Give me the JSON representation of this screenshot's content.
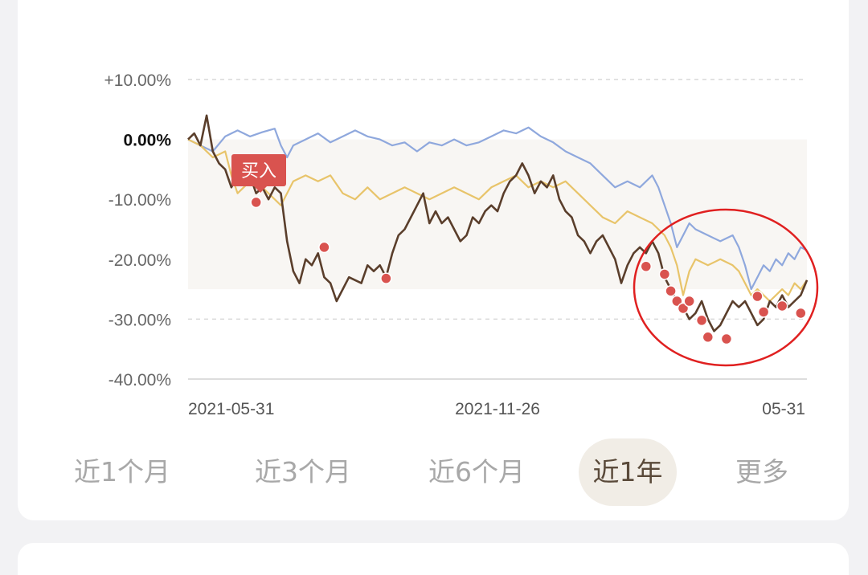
{
  "chart_data": {
    "type": "line",
    "y_ticks": [
      "+10.00%",
      "0.00%",
      "-10.00%",
      "-20.00%",
      "-30.00%",
      "-40.00%"
    ],
    "x_ticks": [
      "2021-05-31",
      "2021-11-26",
      "05-31"
    ],
    "ylim": [
      -40,
      10
    ],
    "grid": true,
    "x_domain": [
      0,
      1
    ],
    "series": [
      {
        "color": "#8fa8dd",
        "points": [
          [
            0,
            0
          ],
          [
            0.02,
            -1
          ],
          [
            0.04,
            -2
          ],
          [
            0.06,
            0.5
          ],
          [
            0.08,
            1.5
          ],
          [
            0.1,
            0.5
          ],
          [
            0.12,
            1.2
          ],
          [
            0.14,
            1.8
          ],
          [
            0.15,
            -1
          ],
          [
            0.16,
            -3
          ],
          [
            0.17,
            -1
          ],
          [
            0.19,
            0
          ],
          [
            0.21,
            1
          ],
          [
            0.23,
            -0.5
          ],
          [
            0.25,
            0.5
          ],
          [
            0.27,
            1.5
          ],
          [
            0.29,
            0.5
          ],
          [
            0.31,
            0
          ],
          [
            0.33,
            -1
          ],
          [
            0.35,
            -0.5
          ],
          [
            0.37,
            -2
          ],
          [
            0.39,
            -0.5
          ],
          [
            0.41,
            -1
          ],
          [
            0.43,
            0
          ],
          [
            0.45,
            -1
          ],
          [
            0.47,
            -0.5
          ],
          [
            0.49,
            0.5
          ],
          [
            0.51,
            1.5
          ],
          [
            0.53,
            1
          ],
          [
            0.55,
            2
          ],
          [
            0.57,
            0.5
          ],
          [
            0.59,
            -0.5
          ],
          [
            0.61,
            -2
          ],
          [
            0.63,
            -3
          ],
          [
            0.65,
            -4
          ],
          [
            0.67,
            -6
          ],
          [
            0.69,
            -8
          ],
          [
            0.71,
            -7
          ],
          [
            0.73,
            -8
          ],
          [
            0.75,
            -6
          ],
          [
            0.76,
            -8
          ],
          [
            0.77,
            -11
          ],
          [
            0.78,
            -14
          ],
          [
            0.79,
            -18
          ],
          [
            0.8,
            -16
          ],
          [
            0.81,
            -14
          ],
          [
            0.82,
            -15
          ],
          [
            0.84,
            -16
          ],
          [
            0.86,
            -17
          ],
          [
            0.88,
            -16
          ],
          [
            0.89,
            -18
          ],
          [
            0.9,
            -21
          ],
          [
            0.91,
            -25
          ],
          [
            0.92,
            -23
          ],
          [
            0.93,
            -21
          ],
          [
            0.94,
            -22
          ],
          [
            0.95,
            -20
          ],
          [
            0.96,
            -21
          ],
          [
            0.97,
            -19
          ],
          [
            0.98,
            -20
          ],
          [
            0.99,
            -18
          ],
          [
            1.0,
            -18.5
          ]
        ]
      },
      {
        "color": "#e8c46a",
        "points": [
          [
            0,
            0
          ],
          [
            0.02,
            -1
          ],
          [
            0.04,
            -3
          ],
          [
            0.06,
            -2
          ],
          [
            0.07,
            -6
          ],
          [
            0.08,
            -9
          ],
          [
            0.1,
            -7
          ],
          [
            0.12,
            -8
          ],
          [
            0.14,
            -10
          ],
          [
            0.15,
            -11
          ],
          [
            0.16,
            -9
          ],
          [
            0.17,
            -7
          ],
          [
            0.19,
            -6
          ],
          [
            0.21,
            -7
          ],
          [
            0.23,
            -6
          ],
          [
            0.25,
            -9
          ],
          [
            0.27,
            -10
          ],
          [
            0.29,
            -8
          ],
          [
            0.31,
            -10
          ],
          [
            0.33,
            -9
          ],
          [
            0.35,
            -8
          ],
          [
            0.37,
            -9
          ],
          [
            0.39,
            -10
          ],
          [
            0.41,
            -9
          ],
          [
            0.43,
            -8
          ],
          [
            0.45,
            -9
          ],
          [
            0.47,
            -10
          ],
          [
            0.49,
            -8
          ],
          [
            0.51,
            -7
          ],
          [
            0.53,
            -6
          ],
          [
            0.55,
            -8
          ],
          [
            0.57,
            -7
          ],
          [
            0.59,
            -8
          ],
          [
            0.61,
            -7
          ],
          [
            0.63,
            -9
          ],
          [
            0.65,
            -11
          ],
          [
            0.67,
            -13
          ],
          [
            0.69,
            -14
          ],
          [
            0.71,
            -12
          ],
          [
            0.73,
            -13
          ],
          [
            0.75,
            -14
          ],
          [
            0.77,
            -16
          ],
          [
            0.78,
            -18
          ],
          [
            0.79,
            -21
          ],
          [
            0.8,
            -26
          ],
          [
            0.81,
            -22
          ],
          [
            0.82,
            -20
          ],
          [
            0.84,
            -21
          ],
          [
            0.86,
            -20
          ],
          [
            0.88,
            -21
          ],
          [
            0.89,
            -22
          ],
          [
            0.9,
            -24
          ],
          [
            0.91,
            -26
          ],
          [
            0.92,
            -25
          ],
          [
            0.94,
            -27
          ],
          [
            0.95,
            -26
          ],
          [
            0.96,
            -25
          ],
          [
            0.97,
            -26
          ],
          [
            0.98,
            -24
          ],
          [
            0.99,
            -25
          ],
          [
            1.0,
            -23.5
          ]
        ]
      },
      {
        "color": "#5a3e2b",
        "points": [
          [
            0,
            0
          ],
          [
            0.01,
            1
          ],
          [
            0.02,
            -1
          ],
          [
            0.03,
            4
          ],
          [
            0.04,
            -2
          ],
          [
            0.05,
            -4
          ],
          [
            0.06,
            -5
          ],
          [
            0.07,
            -8
          ],
          [
            0.08,
            -6
          ],
          [
            0.09,
            -7
          ],
          [
            0.1,
            -6
          ],
          [
            0.11,
            -9
          ],
          [
            0.12,
            -8
          ],
          [
            0.13,
            -10
          ],
          [
            0.14,
            -8
          ],
          [
            0.15,
            -9
          ],
          [
            0.16,
            -17
          ],
          [
            0.17,
            -22
          ],
          [
            0.18,
            -24
          ],
          [
            0.19,
            -20
          ],
          [
            0.2,
            -21
          ],
          [
            0.21,
            -19
          ],
          [
            0.22,
            -23
          ],
          [
            0.23,
            -24
          ],
          [
            0.24,
            -27
          ],
          [
            0.25,
            -25
          ],
          [
            0.26,
            -23
          ],
          [
            0.28,
            -24
          ],
          [
            0.29,
            -21
          ],
          [
            0.3,
            -22
          ],
          [
            0.31,
            -21
          ],
          [
            0.32,
            -23
          ],
          [
            0.33,
            -19
          ],
          [
            0.34,
            -16
          ],
          [
            0.35,
            -15
          ],
          [
            0.36,
            -13
          ],
          [
            0.37,
            -11
          ],
          [
            0.38,
            -9
          ],
          [
            0.39,
            -14
          ],
          [
            0.4,
            -12
          ],
          [
            0.41,
            -14
          ],
          [
            0.42,
            -13
          ],
          [
            0.43,
            -15
          ],
          [
            0.44,
            -17
          ],
          [
            0.45,
            -16
          ],
          [
            0.46,
            -13
          ],
          [
            0.47,
            -14
          ],
          [
            0.48,
            -12
          ],
          [
            0.49,
            -11
          ],
          [
            0.5,
            -12
          ],
          [
            0.51,
            -9
          ],
          [
            0.52,
            -7
          ],
          [
            0.53,
            -6
          ],
          [
            0.54,
            -4
          ],
          [
            0.55,
            -6
          ],
          [
            0.56,
            -9
          ],
          [
            0.57,
            -7
          ],
          [
            0.58,
            -8
          ],
          [
            0.59,
            -6
          ],
          [
            0.6,
            -10
          ],
          [
            0.61,
            -12
          ],
          [
            0.62,
            -13
          ],
          [
            0.63,
            -16
          ],
          [
            0.64,
            -17
          ],
          [
            0.65,
            -19
          ],
          [
            0.66,
            -17
          ],
          [
            0.67,
            -16
          ],
          [
            0.68,
            -18
          ],
          [
            0.69,
            -20
          ],
          [
            0.7,
            -24
          ],
          [
            0.71,
            -21
          ],
          [
            0.72,
            -19
          ],
          [
            0.73,
            -18
          ],
          [
            0.74,
            -19
          ],
          [
            0.75,
            -17
          ],
          [
            0.76,
            -19
          ],
          [
            0.77,
            -23
          ],
          [
            0.78,
            -25
          ],
          [
            0.79,
            -27
          ],
          [
            0.8,
            -28
          ],
          [
            0.81,
            -30
          ],
          [
            0.82,
            -29
          ],
          [
            0.83,
            -27
          ],
          [
            0.84,
            -30
          ],
          [
            0.85,
            -32
          ],
          [
            0.86,
            -31
          ],
          [
            0.87,
            -29
          ],
          [
            0.88,
            -27
          ],
          [
            0.89,
            -28
          ],
          [
            0.9,
            -27
          ],
          [
            0.91,
            -29
          ],
          [
            0.92,
            -31
          ],
          [
            0.93,
            -30
          ],
          [
            0.94,
            -27
          ],
          [
            0.95,
            -28
          ],
          [
            0.96,
            -26
          ],
          [
            0.97,
            -28
          ],
          [
            0.98,
            -27
          ],
          [
            0.99,
            -26
          ],
          [
            1.0,
            -23.5
          ]
        ]
      }
    ],
    "buy_markers": [
      [
        0.11,
        -10.5
      ],
      [
        0.22,
        -18
      ],
      [
        0.32,
        -23.2
      ],
      [
        0.74,
        -21.2
      ],
      [
        0.77,
        -22.5
      ],
      [
        0.78,
        -25.3
      ],
      [
        0.79,
        -27
      ],
      [
        0.8,
        -28.2
      ],
      [
        0.81,
        -27
      ],
      [
        0.83,
        -30.2
      ],
      [
        0.84,
        -33
      ],
      [
        0.87,
        -33.3
      ],
      [
        0.92,
        -26.2
      ],
      [
        0.93,
        -28.8
      ],
      [
        0.96,
        -27.8
      ],
      [
        0.99,
        -29
      ]
    ],
    "buy_label": "买入",
    "circle_color": "#e02020",
    "buy_color": "#d9534f"
  },
  "tabs": [
    {
      "label": "近1个月",
      "active": false
    },
    {
      "label": "近3个月",
      "active": false
    },
    {
      "label": "近6个月",
      "active": false
    },
    {
      "label": "近1年",
      "active": true
    },
    {
      "label": "更多",
      "active": false
    }
  ]
}
